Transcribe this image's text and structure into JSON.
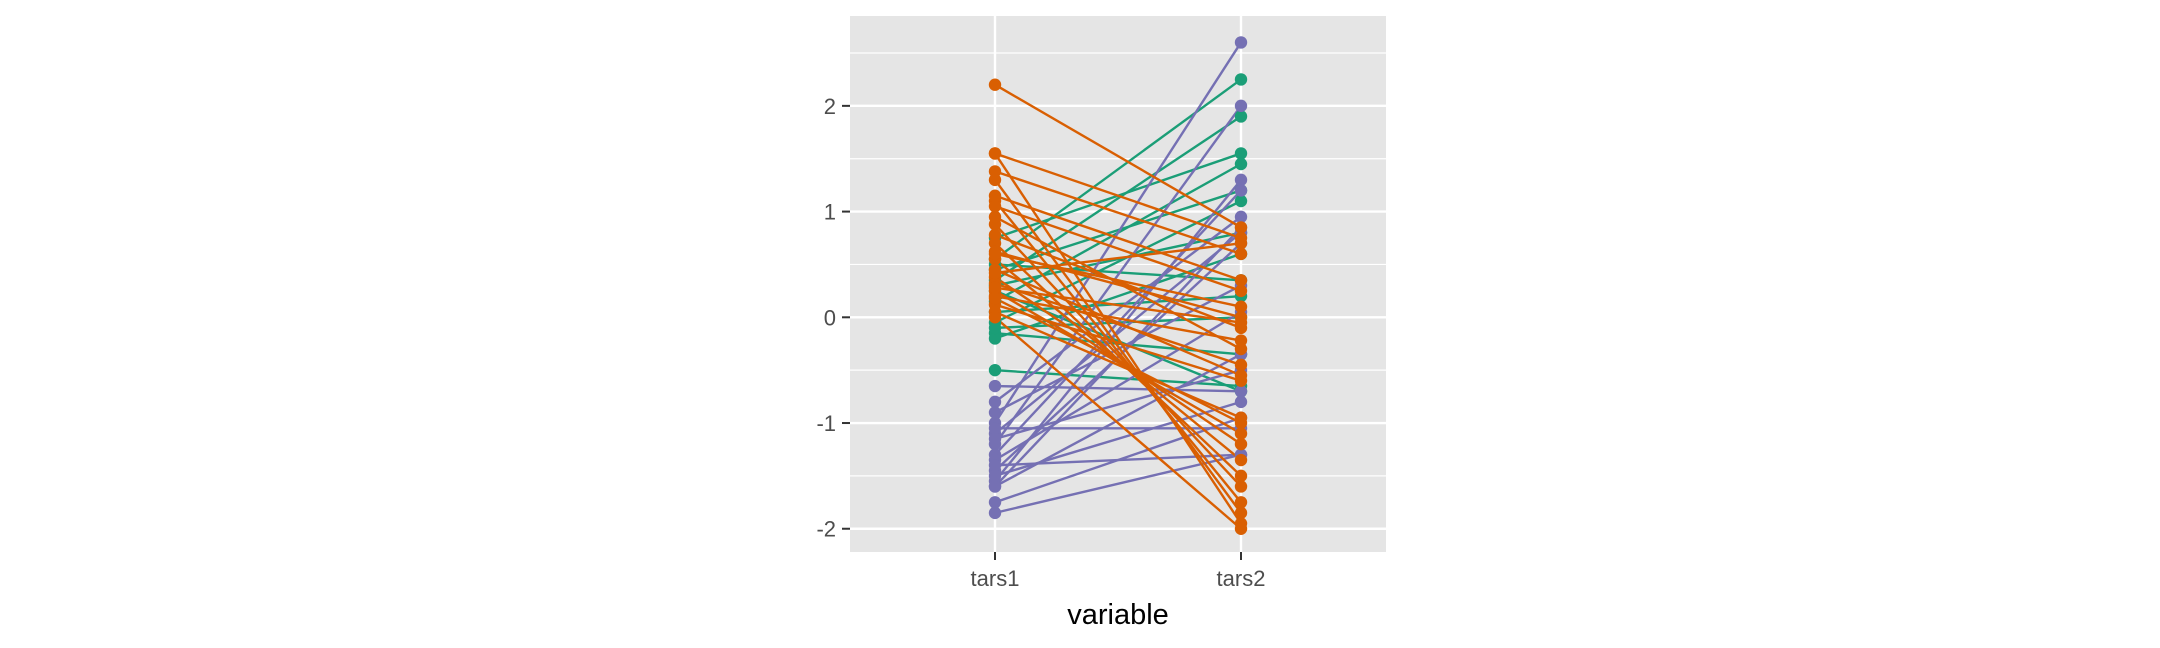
{
  "chart_data": {
    "type": "line",
    "subtype": "parallel-coordinates",
    "title": "",
    "xlabel": "variable",
    "ylabel": "",
    "categories": [
      "tars1",
      "tars2"
    ],
    "ylim": [
      -2.22,
      2.85
    ],
    "yticks": [
      -2,
      -1,
      0,
      1,
      2
    ],
    "grid": true,
    "legend": "none",
    "colors": {
      "panel": "#e5e5e5",
      "grid": "#ffffff",
      "green": "#1b9e77",
      "orange": "#d95f02",
      "purple": "#7570b3"
    },
    "series": [
      {
        "color": "green",
        "values": [
          0.55,
          2.25
        ]
      },
      {
        "color": "green",
        "values": [
          0.35,
          1.9
        ]
      },
      {
        "color": "green",
        "values": [
          0.75,
          1.55
        ]
      },
      {
        "color": "green",
        "values": [
          0.15,
          1.45
        ]
      },
      {
        "color": "green",
        "values": [
          0.45,
          1.2
        ]
      },
      {
        "color": "green",
        "values": [
          -0.05,
          1.1
        ]
      },
      {
        "color": "green",
        "values": [
          0.3,
          0.8
        ]
      },
      {
        "color": "green",
        "values": [
          0.5,
          0.35
        ]
      },
      {
        "color": "green",
        "values": [
          0.05,
          0.2
        ]
      },
      {
        "color": "green",
        "values": [
          -0.15,
          -0.35
        ]
      },
      {
        "color": "green",
        "values": [
          -0.5,
          -0.65
        ]
      },
      {
        "color": "green",
        "values": [
          -0.2,
          0.6
        ]
      },
      {
        "color": "green",
        "values": [
          0.25,
          -0.7
        ]
      },
      {
        "color": "green",
        "values": [
          -0.1,
          0.0
        ]
      },
      {
        "color": "purple",
        "values": [
          -1.0,
          2.6
        ]
      },
      {
        "color": "purple",
        "values": [
          -1.2,
          2.0
        ]
      },
      {
        "color": "purple",
        "values": [
          -1.55,
          1.3
        ]
      },
      {
        "color": "purple",
        "values": [
          -1.3,
          1.2
        ]
      },
      {
        "color": "purple",
        "values": [
          -0.8,
          0.95
        ]
      },
      {
        "color": "purple",
        "values": [
          -1.6,
          0.85
        ]
      },
      {
        "color": "purple",
        "values": [
          -1.1,
          0.8
        ]
      },
      {
        "color": "purple",
        "values": [
          -1.45,
          0.7
        ]
      },
      {
        "color": "purple",
        "values": [
          -0.9,
          0.3
        ]
      },
      {
        "color": "purple",
        "values": [
          -1.35,
          0.05
        ]
      },
      {
        "color": "purple",
        "values": [
          -1.6,
          -0.35
        ]
      },
      {
        "color": "purple",
        "values": [
          -1.15,
          -0.5
        ]
      },
      {
        "color": "purple",
        "values": [
          -0.65,
          -0.7
        ]
      },
      {
        "color": "purple",
        "values": [
          -1.5,
          -0.8
        ]
      },
      {
        "color": "purple",
        "values": [
          -1.05,
          -1.05
        ]
      },
      {
        "color": "purple",
        "values": [
          -1.4,
          -1.3
        ]
      },
      {
        "color": "purple",
        "values": [
          -1.85,
          -1.3
        ]
      },
      {
        "color": "purple",
        "values": [
          -1.75,
          -0.95
        ]
      },
      {
        "color": "orange",
        "values": [
          2.2,
          0.85
        ]
      },
      {
        "color": "orange",
        "values": [
          1.55,
          0.75
        ]
      },
      {
        "color": "orange",
        "values": [
          1.55,
          -1.95
        ]
      },
      {
        "color": "orange",
        "values": [
          1.38,
          0.6
        ]
      },
      {
        "color": "orange",
        "values": [
          1.3,
          -1.85
        ]
      },
      {
        "color": "orange",
        "values": [
          1.15,
          0.35
        ]
      },
      {
        "color": "orange",
        "values": [
          1.1,
          -1.75
        ]
      },
      {
        "color": "orange",
        "values": [
          1.05,
          0.25
        ]
      },
      {
        "color": "orange",
        "values": [
          0.88,
          -1.6
        ]
      },
      {
        "color": "orange",
        "values": [
          0.78,
          -0.1
        ]
      },
      {
        "color": "orange",
        "values": [
          0.7,
          -1.5
        ]
      },
      {
        "color": "orange",
        "values": [
          0.62,
          0.0
        ]
      },
      {
        "color": "orange",
        "values": [
          0.55,
          -1.35
        ]
      },
      {
        "color": "orange",
        "values": [
          0.45,
          -0.55
        ]
      },
      {
        "color": "orange",
        "values": [
          0.38,
          -1.2
        ]
      },
      {
        "color": "orange",
        "values": [
          0.32,
          -0.45
        ]
      },
      {
        "color": "orange",
        "values": [
          0.25,
          -1.1
        ]
      },
      {
        "color": "orange",
        "values": [
          0.2,
          -0.22
        ]
      },
      {
        "color": "orange",
        "values": [
          0.12,
          -0.6
        ]
      },
      {
        "color": "orange",
        "values": [
          0.05,
          -0.95
        ]
      },
      {
        "color": "orange",
        "values": [
          0.0,
          -2.0
        ]
      },
      {
        "color": "orange",
        "values": [
          0.6,
          0.1
        ]
      },
      {
        "color": "orange",
        "values": [
          0.95,
          -0.3
        ]
      },
      {
        "color": "orange",
        "values": [
          0.42,
          0.7
        ]
      },
      {
        "color": "orange",
        "values": [
          0.28,
          -0.05
        ]
      },
      {
        "color": "orange",
        "values": [
          0.18,
          -1.0
        ]
      }
    ]
  }
}
